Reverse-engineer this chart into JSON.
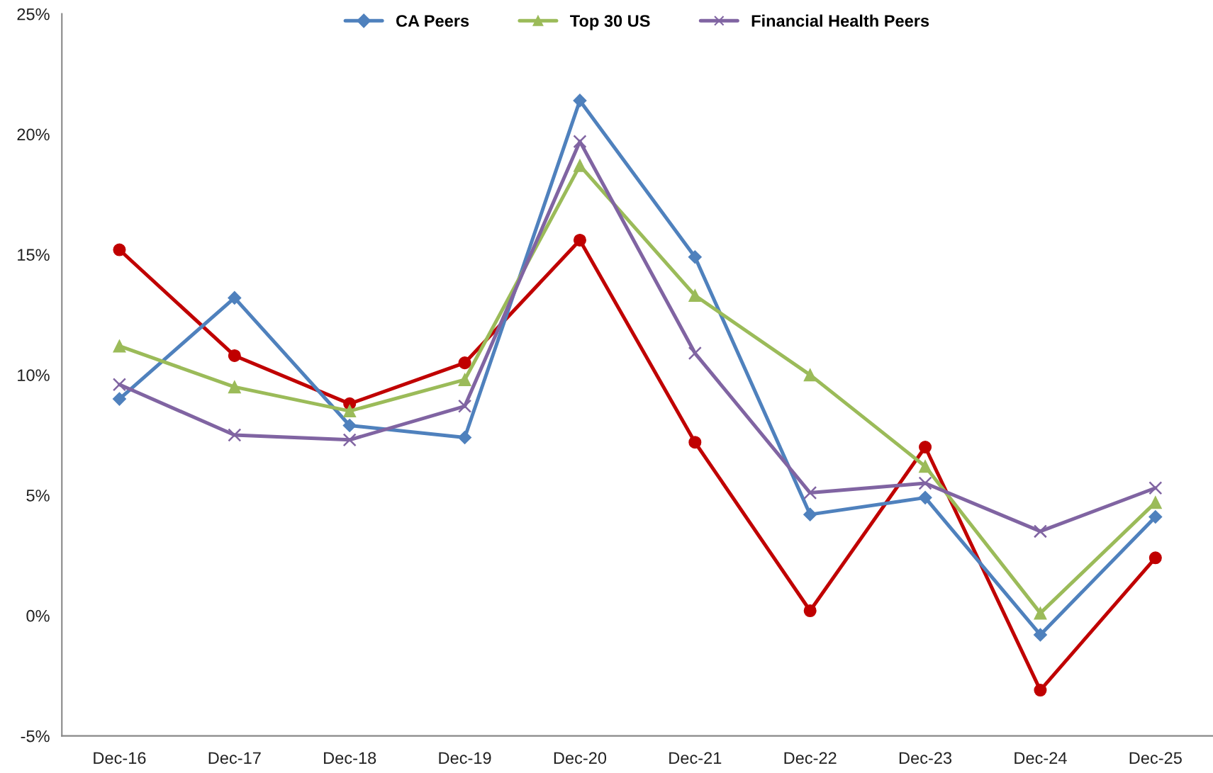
{
  "chart_data": {
    "type": "line",
    "categories": [
      "Dec-16",
      "Dec-17",
      "Dec-18",
      "Dec-19",
      "Dec-20",
      "Dec-21",
      "Dec-22",
      "Dec-23",
      "Dec-24",
      "Dec-25"
    ],
    "series": [
      {
        "color": "#c00000",
        "marker": "circle",
        "values": [
          15.2,
          10.8,
          8.8,
          10.5,
          15.6,
          7.2,
          0.2,
          7.0,
          -3.1,
          2.4
        ]
      },
      {
        "name": "CA Peers",
        "color": "#4f81bd",
        "marker": "diamond",
        "values": [
          9.0,
          13.2,
          7.9,
          7.4,
          21.4,
          14.9,
          4.2,
          4.9,
          -0.8,
          4.1
        ]
      },
      {
        "name": "Top 30 US",
        "color": "#9bbb59",
        "marker": "triangle",
        "values": [
          11.2,
          9.5,
          8.5,
          9.8,
          18.7,
          13.3,
          10.0,
          6.2,
          0.1,
          4.7
        ]
      },
      {
        "name": "Financial Health Peers",
        "color": "#8064a2",
        "marker": "cross",
        "values": [
          9.6,
          7.5,
          7.3,
          8.7,
          19.7,
          10.9,
          5.1,
          5.5,
          3.5,
          5.3
        ]
      }
    ],
    "ylim": [
      -5,
      25
    ],
    "yticks": [
      {
        "value": -5,
        "label": "-5%"
      },
      {
        "value": 0,
        "label": "0%"
      },
      {
        "value": 5,
        "label": "5%"
      },
      {
        "value": 10,
        "label": "10%"
      },
      {
        "value": 15,
        "label": "15%"
      },
      {
        "value": 20,
        "label": "20%"
      },
      {
        "value": 25,
        "label": "25%"
      }
    ],
    "grid": false,
    "legend": "top",
    "line_style": "solid"
  }
}
